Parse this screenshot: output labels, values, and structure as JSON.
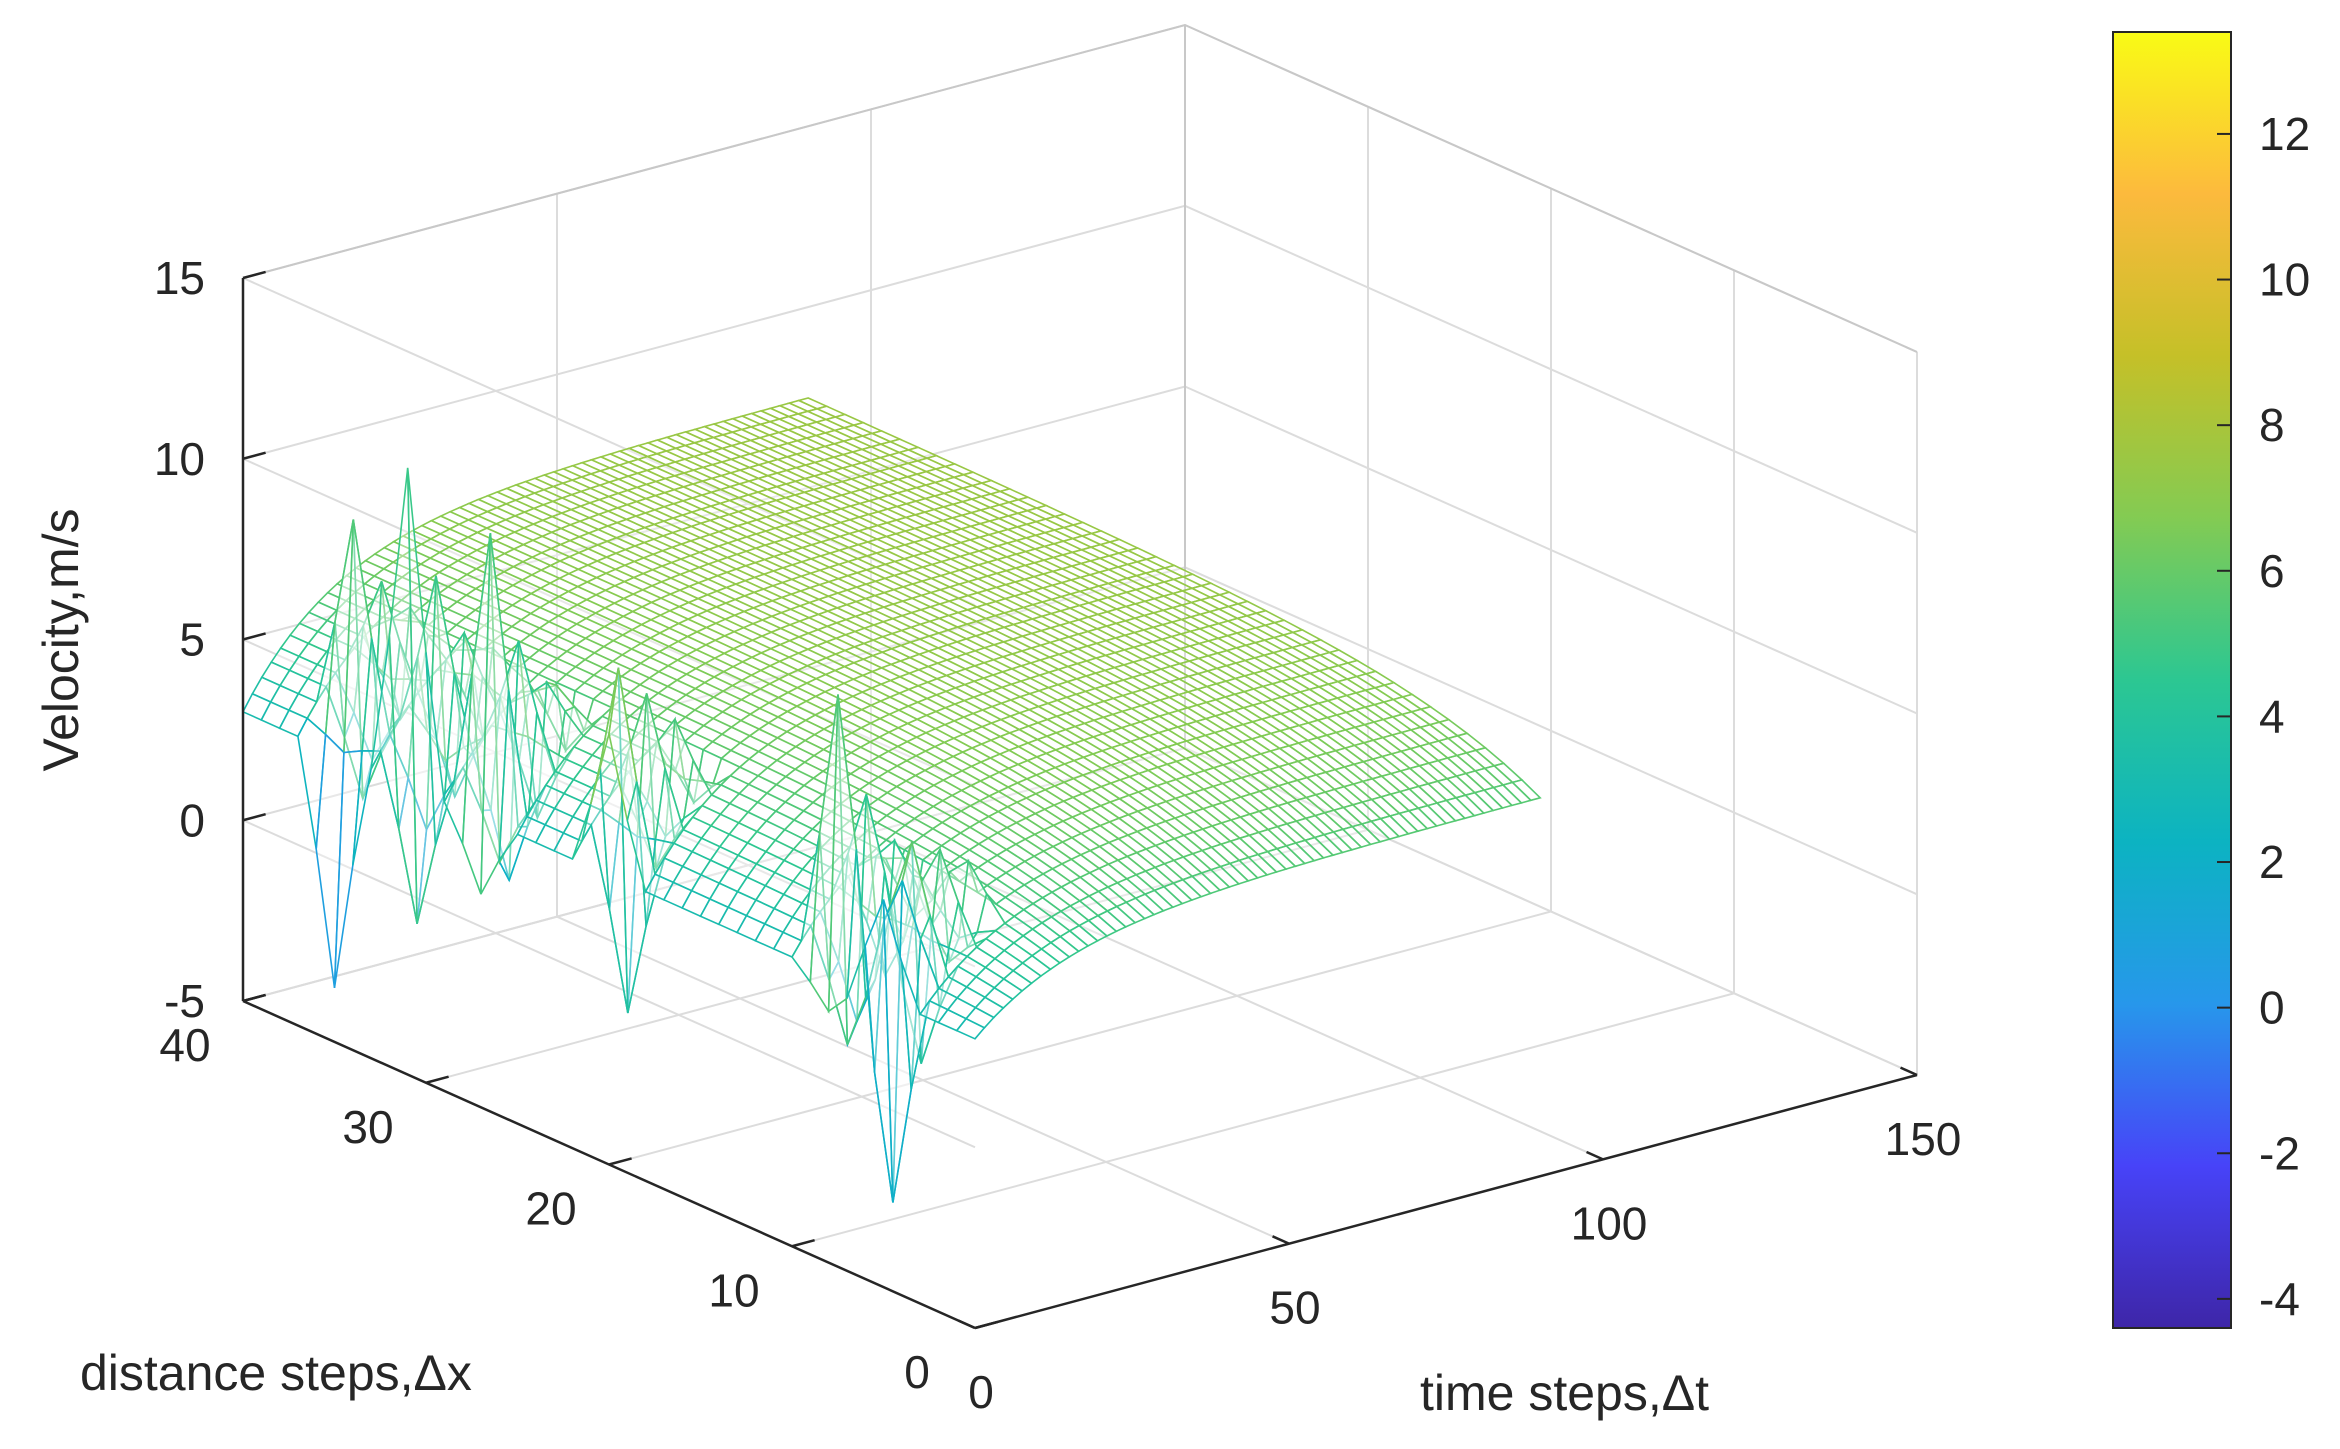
{
  "chart_data": {
    "type": "mesh3d",
    "xlabel": "time steps,Δt",
    "ylabel": "distance steps,Δx",
    "zlabel": "Velocity,m/s",
    "xticks": [
      0,
      50,
      100,
      150
    ],
    "xtick_labels": [
      "0",
      "50",
      "100",
      "150"
    ],
    "yticks": [
      0,
      10,
      20,
      30,
      40
    ],
    "ytick_labels": [
      "0",
      "10",
      "20",
      "30",
      "40"
    ],
    "zticks": [
      -5,
      0,
      5,
      10,
      15
    ],
    "ztick_labels": [
      "-5",
      "0",
      "5",
      "10",
      "15"
    ],
    "xlim": [
      0,
      150
    ],
    "ylim": [
      0,
      40
    ],
    "zlim": [
      -5,
      15
    ],
    "grid": true,
    "colorbar": {
      "ticks": [
        -4,
        -2,
        0,
        2,
        4,
        6,
        8,
        10,
        12
      ],
      "tick_labels": [
        "-4",
        "-2",
        "0",
        "2",
        "4",
        "6",
        "8",
        "10",
        "12"
      ],
      "range": [
        -4.4,
        13.4
      ],
      "colors": [
        "#3e26a8",
        "#4743f8",
        "#2797eb",
        "#0cb3c2",
        "#2cc792",
        "#83cb53",
        "#c5c028",
        "#fcba3d",
        "#f9fb15"
      ]
    },
    "surface": {
      "description_values": {
        "plateau_velocity": 7.5,
        "boundary_velocity": 3,
        "max_velocity": 12.6,
        "min_velocity": -4.2
      },
      "x_range": [
        0,
        90
      ],
      "y_range": [
        0,
        40
      ]
    }
  }
}
